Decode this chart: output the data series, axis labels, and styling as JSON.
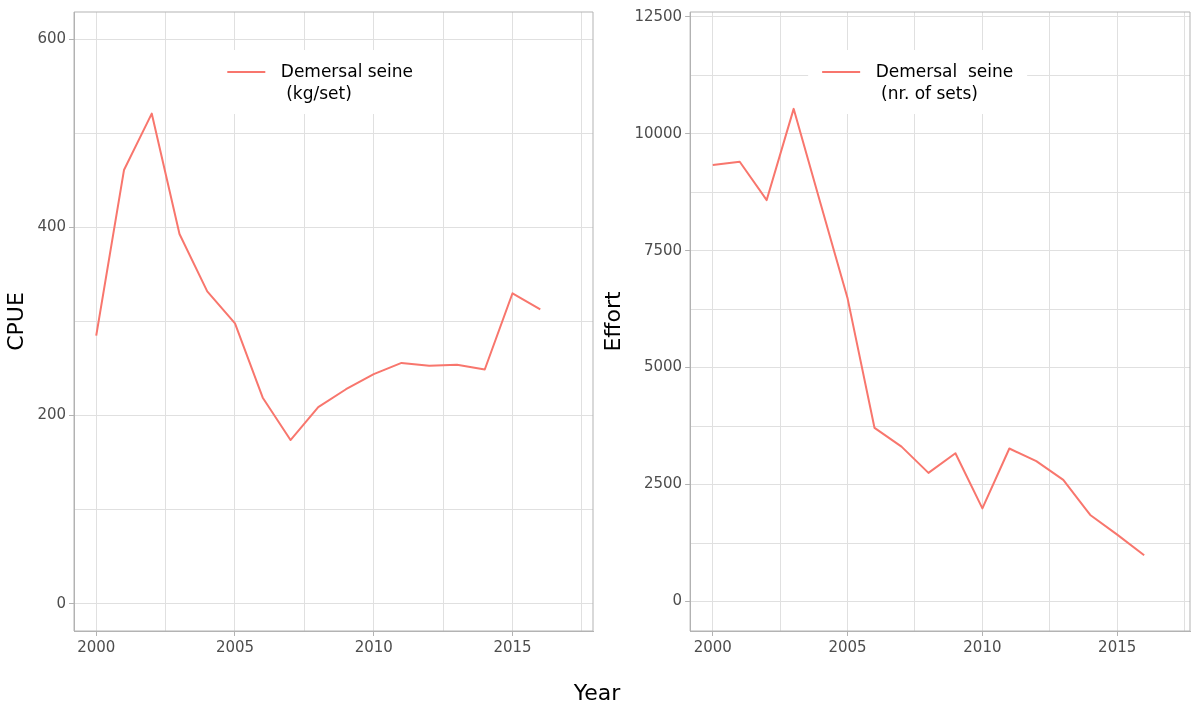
{
  "chart_data": [
    {
      "type": "line",
      "xlabel": "Year",
      "ylabel": "CPUE",
      "x": [
        2000,
        2001,
        2002,
        2003,
        2004,
        2005,
        2006,
        2007,
        2008,
        2009,
        2010,
        2011,
        2012,
        2013,
        2014,
        2015,
        2016
      ],
      "series": [
        {
          "name": "Demersal seine\n (kg/set)",
          "color": "#f8766d",
          "values": [
            285,
            461,
            521,
            393,
            332,
            298,
            219,
            174,
            209,
            228,
            244,
            256,
            253,
            254,
            249,
            330,
            313
          ]
        }
      ],
      "xlim": [
        1999.2,
        2017.9
      ],
      "xticks": [
        2000,
        {
          "value": 2002.5,
          "label": null
        },
        2005,
        {
          "value": 2007.5,
          "label": null
        },
        2010,
        {
          "value": 2012.5,
          "label": null
        },
        2015,
        {
          "value": 2017.5,
          "label": null
        }
      ],
      "ylim": [
        -29,
        629
      ],
      "yticks": [
        0,
        {
          "value": 100,
          "label": null
        },
        200,
        {
          "value": 300,
          "label": null
        },
        400,
        {
          "value": 500,
          "label": null
        },
        600
      ],
      "grid": true,
      "legend": "top",
      "marker": "none",
      "line_style": "solid"
    },
    {
      "type": "line",
      "ylabel": "Effort",
      "x": [
        2000,
        2001,
        2002,
        2003,
        2004,
        2005,
        2006,
        2007,
        2008,
        2009,
        2010,
        2011,
        2012,
        2013,
        2014,
        2015,
        2016
      ],
      "series": [
        {
          "name": "Demersal  seine\n (nr. of sets)",
          "color": "#f8766d",
          "values": [
            9330,
            9400,
            8580,
            10530,
            8500,
            6480,
            3710,
            3310,
            2750,
            3170,
            1990,
            3270,
            3000,
            2600,
            1850,
            1430,
            990
          ]
        }
      ],
      "xlim": [
        1999.16,
        2017.7
      ],
      "xticks": [
        2000,
        {
          "value": 2002.5,
          "label": null
        },
        2005,
        {
          "value": 2007.5,
          "label": null
        },
        2010,
        {
          "value": 2012.5,
          "label": null
        },
        2015,
        {
          "value": 2017.5,
          "label": null
        }
      ],
      "ylim": [
        -630,
        12600
      ],
      "yticks": [
        0,
        {
          "value": 1250,
          "label": null
        },
        2500,
        {
          "value": 3750,
          "label": null
        },
        5000,
        {
          "value": 6250,
          "label": null
        },
        7500,
        {
          "value": 8750,
          "label": null
        },
        10000,
        {
          "value": 11250,
          "label": null
        },
        12500
      ],
      "grid": true,
      "legend": "top",
      "marker": "none",
      "line_style": "solid"
    }
  ]
}
